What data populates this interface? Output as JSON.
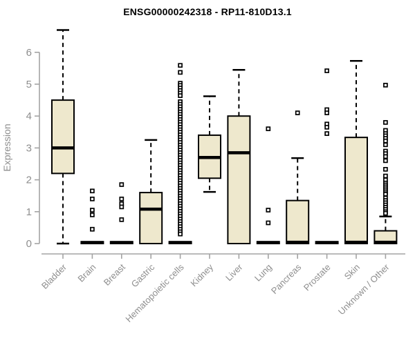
{
  "chart_data": {
    "type": "boxplot",
    "title": "ENSG00000242318 - RP11-810D13.1",
    "ylabel": "Expression",
    "ylim": [
      0,
      6.8
    ],
    "yticks": [
      0,
      1,
      2,
      3,
      4,
      5,
      6
    ],
    "grid": false,
    "legend": "none",
    "categories": [
      "Bladder",
      "Brain",
      "Breast",
      "Gastric",
      "Hematopoietic cells",
      "Kidney",
      "Liver",
      "Lung",
      "Pancreas",
      "Prostate",
      "Skin",
      "Unknown / Other"
    ],
    "series": [
      {
        "category": "Bladder",
        "whisker_low": 0,
        "q1": 2.2,
        "median": 3.0,
        "q3": 4.5,
        "whisker_high": 6.7,
        "outliers": []
      },
      {
        "category": "Brain",
        "whisker_low": 0,
        "q1": 0,
        "median": 0.03,
        "q3": 0.06,
        "whisker_high": 0.06,
        "outliers": [
          1.65,
          1.4,
          1.05,
          0.9,
          0.45
        ]
      },
      {
        "category": "Breast",
        "whisker_low": 0,
        "q1": 0,
        "median": 0.03,
        "q3": 0.06,
        "whisker_high": 0.06,
        "outliers": [
          1.85,
          1.4,
          1.25,
          1.15,
          0.75
        ]
      },
      {
        "category": "Gastric",
        "whisker_low": 0,
        "q1": 0,
        "median": 1.08,
        "q3": 1.6,
        "whisker_high": 3.25,
        "outliers": []
      },
      {
        "category": "Hematopoietic cells",
        "whisker_low": 0,
        "q1": 0,
        "median": 0.03,
        "q3": 0.06,
        "whisker_high": 0.06,
        "outliers": [
          5.59,
          5.37,
          5.03,
          4.96,
          4.88,
          4.8,
          4.72,
          4.64,
          4.45,
          4.37,
          4.29,
          4.21,
          4.13,
          4.05,
          3.97,
          3.89,
          3.81,
          3.73,
          3.65,
          3.57,
          3.49,
          3.41,
          3.33,
          3.25,
          3.17,
          3.09,
          3.01,
          2.93,
          2.85,
          2.77,
          2.69,
          2.61,
          2.53,
          2.45,
          2.37,
          2.29,
          2.21,
          2.13,
          2.05,
          1.97,
          1.89,
          1.81,
          1.73,
          1.65,
          1.57,
          1.49,
          1.41,
          1.33,
          1.25,
          1.17,
          1.09,
          1.01,
          0.93,
          0.85,
          0.77,
          0.69,
          0.61,
          0.53,
          0.45,
          0.37,
          0.3
        ]
      },
      {
        "category": "Kidney",
        "whisker_low": 1.62,
        "q1": 2.05,
        "median": 2.7,
        "q3": 3.4,
        "whisker_high": 4.62,
        "outliers": []
      },
      {
        "category": "Liver",
        "whisker_low": 0,
        "q1": 0,
        "median": 2.85,
        "q3": 4.0,
        "whisker_high": 5.45,
        "outliers": []
      },
      {
        "category": "Lung",
        "whisker_low": 0,
        "q1": 0,
        "median": 0.03,
        "q3": 0.06,
        "whisker_high": 0.06,
        "outliers": [
          3.6,
          1.05,
          0.65
        ]
      },
      {
        "category": "Pancreas",
        "whisker_low": 0,
        "q1": 0,
        "median": 0.04,
        "q3": 1.35,
        "whisker_high": 2.68,
        "outliers": [
          4.1
        ]
      },
      {
        "category": "Prostate",
        "whisker_low": 0,
        "q1": 0,
        "median": 0.03,
        "q3": 0.06,
        "whisker_high": 0.06,
        "outliers": [
          5.42,
          4.2,
          4.1,
          3.75,
          3.65,
          3.45
        ]
      },
      {
        "category": "Skin",
        "whisker_low": 0,
        "q1": 0,
        "median": 0.04,
        "q3": 3.33,
        "whisker_high": 5.73,
        "outliers": []
      },
      {
        "category": "Unknown / Other",
        "whisker_low": 0,
        "q1": 0,
        "median": 0.04,
        "q3": 0.4,
        "whisker_high": 0.85,
        "outliers": [
          4.97,
          3.8,
          3.55,
          3.45,
          3.38,
          3.3,
          3.22,
          3.1,
          2.9,
          2.82,
          2.73,
          2.6,
          2.33,
          2.12,
          2.0,
          1.9,
          1.84,
          1.78,
          1.72,
          1.66,
          1.6,
          1.55,
          1.43,
          1.35,
          1.28,
          1.21,
          1.14,
          1.07,
          1.0,
          0.95
        ]
      }
    ]
  },
  "colors": {
    "box_fill": "#eee8cd",
    "box_border": "#000000",
    "median": "#000000",
    "whisker": "#000000",
    "outlier_stroke": "#000000",
    "outlier_fill": "#ffffff",
    "axis_line": "#a3a3a3",
    "axis_text": "#8e8e8e",
    "title_text": "#000000",
    "background": "#ffffff"
  }
}
